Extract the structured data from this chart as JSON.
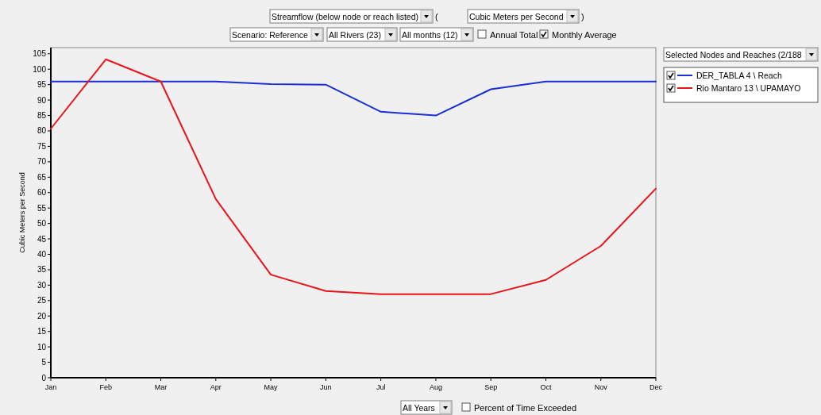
{
  "chart_data": {
    "type": "line",
    "ylabel": "Cubic Meters per Second",
    "categories": [
      "Jan",
      "Feb",
      "Mar",
      "Apr",
      "May",
      "Jun",
      "Jul",
      "Aug",
      "Sep",
      "Oct",
      "Nov",
      "Dec"
    ],
    "ylim": [
      0,
      107
    ],
    "yticks": [
      0,
      5,
      10,
      15,
      20,
      25,
      30,
      35,
      40,
      45,
      50,
      55,
      60,
      65,
      70,
      75,
      80,
      85,
      90,
      95,
      100,
      105
    ],
    "grid": false,
    "legend": "top right",
    "line_style": "solid",
    "marker": "none",
    "series": [
      {
        "name": "DER_TABLA  4 \\ Reach",
        "color": "#1a2fd6",
        "values": [
          96,
          96,
          96,
          96,
          95.2,
          95,
          86.2,
          85,
          93.5,
          96,
          96,
          96
        ]
      },
      {
        "name": "Rio Mantaro 13 \\ UPAMAYO",
        "color": "#e8141a",
        "values": [
          80.7,
          103.2,
          96,
          57.9,
          33.4,
          28.1,
          27.1,
          27.1,
          27.1,
          31.7,
          42.7,
          61.3
        ]
      }
    ],
    "annotations": [
      "Streamflow (below node or reach listed)",
      "(",
      "Cubic Meters per Second",
      ")",
      "Scenario: Reference",
      "All Rivers (23)",
      "All months (12)",
      "Annual Total",
      "Monthly Average",
      "Selected Nodes and Reaches (2/188",
      "All Years",
      "Percent of Time Exceeded"
    ]
  }
}
